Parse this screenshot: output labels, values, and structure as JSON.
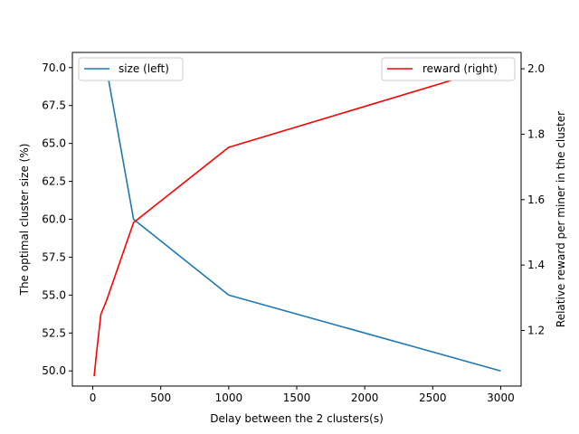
{
  "chart_data": {
    "type": "line",
    "title": "",
    "xlabel": "Delay between the 2 clusters(s)",
    "ylabel_left": "The optimal cluster size (%)",
    "ylabel_right": "Relative reward per miner in the cluster",
    "xlim": [
      -150,
      3150
    ],
    "ylim_left": [
      49.0,
      71.0
    ],
    "ylim_right": [
      1.03,
      2.05
    ],
    "x_ticks": [
      0,
      500,
      1000,
      1500,
      2000,
      2500,
      3000
    ],
    "x_tick_labels": [
      "0",
      "500",
      "1000",
      "1500",
      "2000",
      "2500",
      "3000"
    ],
    "y_left_ticks": [
      50.0,
      52.5,
      55.0,
      57.5,
      60.0,
      62.5,
      65.0,
      67.5,
      70.0
    ],
    "y_left_tick_labels": [
      "50.0",
      "52.5",
      "55.0",
      "57.5",
      "60.0",
      "62.5",
      "65.0",
      "67.5",
      "70.0"
    ],
    "y_right_ticks": [
      1.2,
      1.4,
      1.6,
      1.8,
      2.0
    ],
    "y_right_tick_labels": [
      "1.2",
      "1.4",
      "1.6",
      "1.8",
      "2.0"
    ],
    "grid": false,
    "legend_left": {
      "placement": "upper-left",
      "label": "size (left)",
      "color": "#1f77b4"
    },
    "legend_right": {
      "placement": "upper-right",
      "label": "reward (right)",
      "color": "#ff0000"
    },
    "series": [
      {
        "name": "size (left)",
        "axis": "left",
        "color": "#1f77b4",
        "x": [
          10,
          100,
          300,
          1000,
          3000
        ],
        "y": [
          70.0,
          70.0,
          60.0,
          55.0,
          50.0
        ]
      },
      {
        "name": "reward (right)",
        "axis": "right",
        "color": "#ff0000",
        "x": [
          10,
          30,
          60,
          100,
          300,
          1000,
          3000
        ],
        "y": [
          1.06,
          1.14,
          1.25,
          1.29,
          1.53,
          1.76,
          2.01
        ]
      }
    ]
  }
}
